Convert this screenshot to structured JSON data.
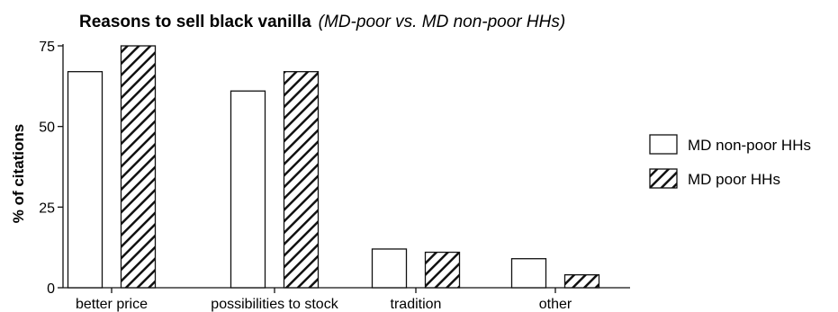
{
  "chart_data": {
    "type": "bar",
    "title": "Reasons to sell black vanilla",
    "subtitle": "(MD-poor vs. MD non-poor HHs)",
    "xlabel": "",
    "ylabel": "% of citations",
    "categories": [
      "better price",
      "possibilities to stock",
      "tradition",
      "other"
    ],
    "ylim": [
      0,
      75
    ],
    "yticks": [
      0,
      25,
      50,
      75
    ],
    "grid": false,
    "legend_position": "right",
    "series": [
      {
        "name": "MD non-poor HHs",
        "pattern": "open",
        "values": [
          67,
          61,
          12,
          9
        ]
      },
      {
        "name": "MD poor HHs",
        "pattern": "hatched",
        "values": [
          75,
          67,
          11,
          4
        ]
      }
    ]
  },
  "colors": {
    "stroke": "#111111",
    "fill_open": "#ffffff",
    "hatch": "#111111"
  }
}
